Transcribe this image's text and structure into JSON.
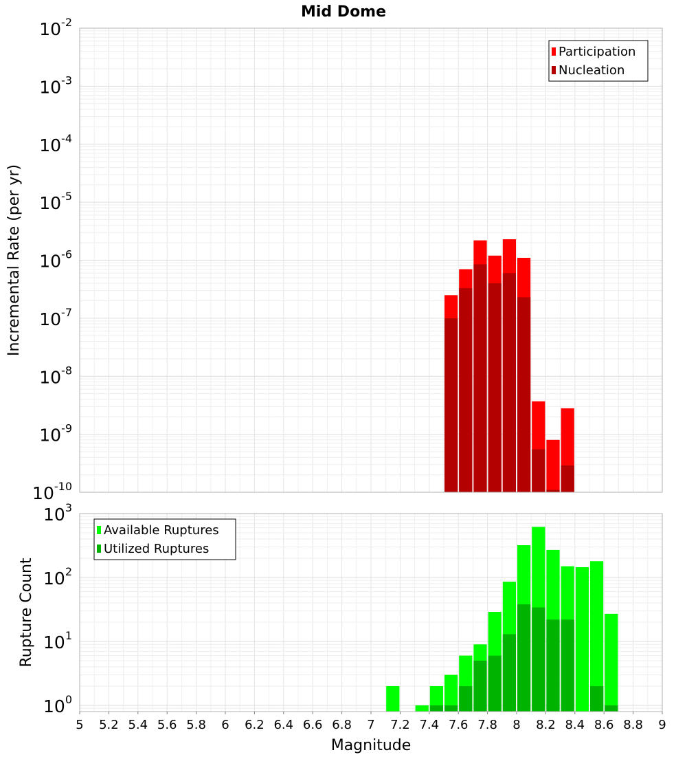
{
  "chart_data": [
    {
      "type": "bar",
      "title": "Mid Dome",
      "ylabel": "Incremental Rate (per yr)",
      "xlabel": "",
      "yscale": "log",
      "ylim": [
        1e-10,
        0.01
      ],
      "xlim": [
        5,
        9
      ],
      "legend_position": "top-right",
      "series": [
        {
          "name": "Participation",
          "color": "#ff0000",
          "x": [
            7.55,
            7.65,
            7.75,
            7.85,
            7.95,
            8.05,
            8.15,
            8.25,
            8.35
          ],
          "values": [
            2.5e-07,
            7e-07,
            2.2e-06,
            1.2e-06,
            2.3e-06,
            1.1e-06,
            3.7e-09,
            8e-10,
            2.8e-09
          ]
        },
        {
          "name": "Nucleation",
          "color": "#b30000",
          "x": [
            7.55,
            7.65,
            7.75,
            7.85,
            7.95,
            8.05,
            8.15,
            8.25,
            8.35
          ],
          "values": [
            1e-07,
            3.3e-07,
            8.5e-07,
            4e-07,
            6e-07,
            2.3e-07,
            5.5e-10,
            1.1e-10,
            2.9e-10
          ]
        }
      ]
    },
    {
      "type": "bar",
      "title": "",
      "ylabel": "Rupture Count",
      "xlabel": "Magnitude",
      "yscale": "log",
      "ylim": [
        0.8,
        1000
      ],
      "xlim": [
        5,
        9
      ],
      "legend_position": "top-left",
      "x_ticks": [
        "5",
        "5.2",
        "5.4",
        "5.6",
        "5.8",
        "6",
        "6.2",
        "6.4",
        "6.6",
        "6.8",
        "7",
        "7.2",
        "7.4",
        "7.6",
        "7.8",
        "8",
        "8.2",
        "8.4",
        "8.6",
        "8.8",
        "9"
      ],
      "series": [
        {
          "name": "Available Ruptures",
          "color": "#00ff00",
          "x": [
            7.15,
            7.35,
            7.45,
            7.55,
            7.65,
            7.75,
            7.85,
            7.95,
            8.05,
            8.15,
            8.25,
            8.35,
            8.45,
            8.55,
            8.65
          ],
          "values": [
            2,
            1,
            2,
            3,
            6,
            9,
            29,
            86,
            320,
            620,
            270,
            150,
            145,
            180,
            27
          ]
        },
        {
          "name": "Utilized Ruptures",
          "color": "#00b300",
          "x": [
            7.45,
            7.55,
            7.65,
            7.75,
            7.85,
            7.95,
            8.05,
            8.15,
            8.25,
            8.35,
            8.55,
            8.65
          ],
          "values": [
            1,
            1,
            2,
            5,
            6,
            13,
            38,
            34,
            22,
            22,
            2,
            1
          ]
        }
      ]
    }
  ]
}
